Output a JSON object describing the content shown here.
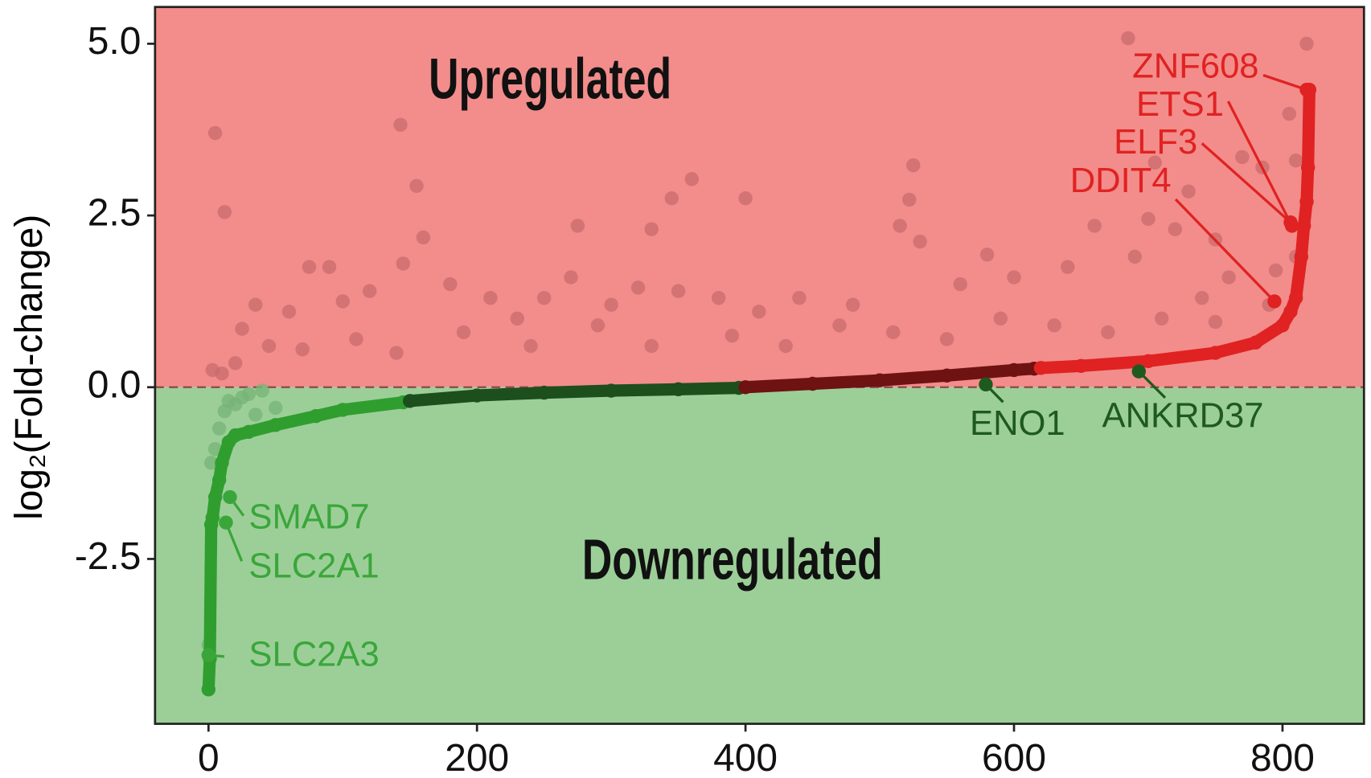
{
  "chart_data": {
    "type": "scatter",
    "y_label": "log₂(Fold-change)",
    "regions": [
      {
        "label": "Upregulated",
        "from": 0,
        "to": 5.535,
        "color": "#f28d8b"
      },
      {
        "label": "Downregulated",
        "from": -4.9,
        "to": 0,
        "color": "#9ccf98"
      }
    ],
    "reference_line": 0,
    "xlim": [
      -39.8,
      860.7
    ],
    "ylim": [
      -4.9,
      5.535
    ],
    "xticks": [
      0,
      200,
      400,
      600,
      800
    ],
    "yticks": [
      {
        "value": 5,
        "label": "5.0"
      },
      {
        "value": 2.5,
        "label": "2.5"
      },
      {
        "value": 0,
        "label": "0.0"
      },
      {
        "value": -2.5,
        "label": "-2.5"
      }
    ],
    "series": [
      {
        "color": "#c96b6b",
        "opacity": 0.75,
        "x": [
          5,
          12,
          143,
          155,
          160,
          360,
          345,
          330,
          275,
          400,
          525,
          522,
          515,
          530,
          580,
          685,
          700,
          720,
          730,
          705,
          750,
          770,
          785,
          805,
          810,
          818,
          810,
          795,
          760,
          740,
          690,
          660,
          640,
          600,
          560,
          480,
          440,
          410,
          380,
          350,
          320,
          300,
          270,
          250,
          230,
          210,
          180,
          145,
          120,
          100,
          75,
          90,
          60,
          35,
          25,
          45,
          70,
          110,
          140,
          190,
          240,
          290,
          330,
          390,
          430,
          470,
          510,
          550,
          590,
          630,
          670,
          710,
          750,
          790,
          20,
          10,
          3
        ],
        "values": [
          3.7,
          2.55,
          3.82,
          2.93,
          2.18,
          3.03,
          2.75,
          2.3,
          2.35,
          2.75,
          3.23,
          2.73,
          2.35,
          2.12,
          1.93,
          5.08,
          2.45,
          2.3,
          2.85,
          3.27,
          2.15,
          3.35,
          3.2,
          3.98,
          3.3,
          5.0,
          1.9,
          1.7,
          1.6,
          1.3,
          1.9,
          2.35,
          1.75,
          1.6,
          1.5,
          1.2,
          1.3,
          1.1,
          1.3,
          1.4,
          1.45,
          1.2,
          1.6,
          1.3,
          1.0,
          1.3,
          1.5,
          1.8,
          1.4,
          1.25,
          1.75,
          1.75,
          1.1,
          1.2,
          0.85,
          0.6,
          0.55,
          0.7,
          0.5,
          0.8,
          0.6,
          0.9,
          0.6,
          0.75,
          0.6,
          0.9,
          0.8,
          0.7,
          1.0,
          0.9,
          0.8,
          1.0,
          0.95,
          1.2,
          0.35,
          0.2,
          0.25
        ]
      },
      {
        "color": "#78b478",
        "opacity": 0.8,
        "x": [
          0,
          2,
          5,
          8,
          12,
          15,
          20,
          25,
          30,
          40,
          50,
          35
        ],
        "values": [
          -3.75,
          -1.1,
          -0.9,
          -0.6,
          -0.35,
          -0.2,
          -0.25,
          -0.15,
          -0.1,
          -0.05,
          -0.3,
          -0.4
        ]
      },
      {
        "color": "#2f9e2f",
        "opacity": 1,
        "x": [
          0,
          1,
          2,
          3,
          5,
          8,
          10,
          15,
          20,
          30,
          50,
          80,
          100,
          145
        ],
        "values": [
          -4.4,
          -3.95,
          -2.0,
          -1.9,
          -1.6,
          -1.35,
          -1.1,
          -0.8,
          -0.7,
          -0.65,
          -0.55,
          -0.42,
          -0.33,
          -0.22
        ]
      },
      {
        "color": "#1d4f1d",
        "opacity": 1,
        "x": [
          150,
          200,
          250,
          300,
          350,
          395
        ],
        "values": [
          -0.2,
          -0.12,
          -0.08,
          -0.05,
          -0.03,
          -0.01
        ]
      },
      {
        "color": "#6e1212",
        "opacity": 1,
        "x": [
          400,
          450,
          500,
          550,
          600,
          615
        ],
        "values": [
          0.0,
          0.05,
          0.1,
          0.17,
          0.25,
          0.27
        ]
      },
      {
        "color": "#e02222",
        "opacity": 1,
        "x": [
          620,
          650,
          700,
          750,
          780,
          800,
          806,
          810,
          814,
          816,
          818,
          819,
          820
        ],
        "values": [
          0.28,
          0.31,
          0.38,
          0.5,
          0.65,
          0.9,
          1.1,
          1.3,
          1.9,
          2.35,
          2.7,
          3.2,
          4.33
        ]
      }
    ],
    "annotations": [
      {
        "label": "ZNF608",
        "x": 818,
        "y": 4.33,
        "color": "#e02222"
      },
      {
        "label": "ETS1",
        "x": 807,
        "y": 2.35,
        "color": "#e02222"
      },
      {
        "label": "ELF3",
        "x": 806,
        "y": 2.4,
        "color": "#e02222"
      },
      {
        "label": "DDIT4",
        "x": 794,
        "y": 1.25,
        "color": "#e02222"
      },
      {
        "label": "ENO1",
        "x": 579,
        "y": 0.04,
        "color": "#1e5a1e"
      },
      {
        "label": "ANKRD37",
        "x": 693,
        "y": 0.23,
        "color": "#1e5a1e"
      },
      {
        "label": "SMAD7",
        "x": 16,
        "y": -1.6,
        "color": "#3aa63a"
      },
      {
        "label": "SLC2A1",
        "x": 13,
        "y": -1.97,
        "color": "#3aa63a"
      },
      {
        "label": "SLC2A3",
        "x": 0,
        "y": -3.9,
        "color": "#3aa63a"
      }
    ]
  }
}
